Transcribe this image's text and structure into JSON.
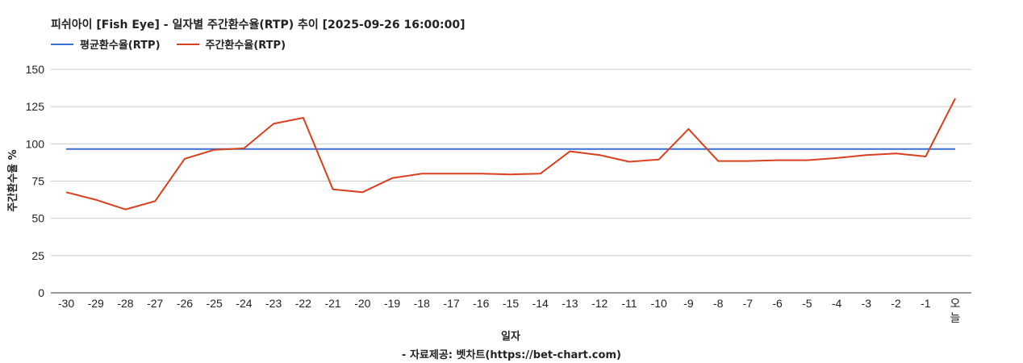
{
  "header": {
    "title": "피쉬아이 [Fish Eye] - 일자별 주간환수율(RTP) 추이 [2025-09-26 16:00:00]"
  },
  "footer": {
    "credit": "- 자료제공: 벳차트(https://bet-chart.com)"
  },
  "colors": {
    "avg": "#3a6fd8",
    "weekly": "#d9401f",
    "grid": "#cccccc"
  },
  "chart_data": {
    "type": "line",
    "title": "피쉬아이 [Fish Eye] - 일자별 주간환수율(RTP) 추이 [2025-09-26 16:00:00]",
    "xlabel": "일자",
    "ylabel": "주간환수율 %",
    "ylim": [
      0,
      150
    ],
    "yticks": [
      "0",
      "25",
      "50",
      "75",
      "100",
      "125",
      "150"
    ],
    "grid": true,
    "legend": "top-left",
    "categories": [
      "-30",
      "-29",
      "-28",
      "-27",
      "-26",
      "-25",
      "-24",
      "-23",
      "-22",
      "-21",
      "-20",
      "-19",
      "-18",
      "-17",
      "-16",
      "-15",
      "-14",
      "-13",
      "-12",
      "-11",
      "-10",
      "-9",
      "-8",
      "-7",
      "-6",
      "-5",
      "-4",
      "-3",
      "-2",
      "-1",
      "오늘"
    ],
    "series": [
      {
        "name": "평균환수율(RTP)",
        "color": "#3a6fd8",
        "values": [
          96.5,
          96.5,
          96.5,
          96.5,
          96.5,
          96.5,
          96.5,
          96.5,
          96.5,
          96.5,
          96.5,
          96.5,
          96.5,
          96.5,
          96.5,
          96.5,
          96.5,
          96.5,
          96.5,
          96.5,
          96.5,
          96.5,
          96.5,
          96.5,
          96.5,
          96.5,
          96.5,
          96.5,
          96.5,
          96.5,
          96.5
        ]
      },
      {
        "name": "주간환수율(RTP)",
        "color": "#d9401f",
        "values": [
          67.5,
          62.5,
          56,
          61.5,
          90,
          96,
          97,
          113.5,
          117.5,
          69.5,
          67.5,
          77,
          80,
          80,
          80,
          79.5,
          80,
          95,
          92.5,
          88,
          89.5,
          110,
          88.5,
          88.5,
          89,
          89,
          90.5,
          92.5,
          93.5,
          91.5,
          130.5
        ]
      }
    ]
  }
}
